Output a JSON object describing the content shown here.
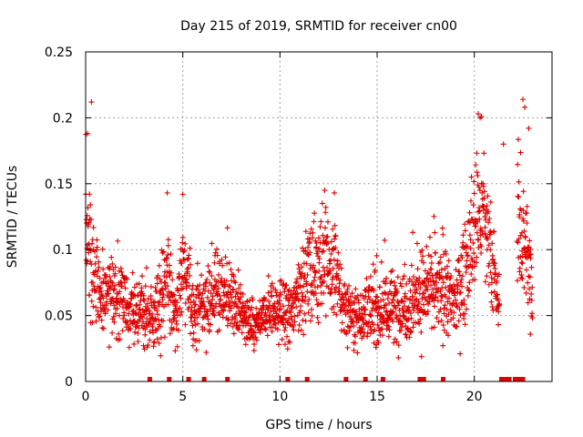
{
  "chart_data": {
    "type": "scatter",
    "title": "Day 215 of 2019, SRMTID for receiver cn00",
    "xlabel": "GPS time / hours",
    "ylabel": "SRMTID / TECUs",
    "xlim": [
      0,
      24
    ],
    "ylim": [
      0,
      0.25
    ],
    "x_ticks": [
      0,
      5,
      10,
      15,
      20
    ],
    "x_tick_labels": [
      "0",
      "5",
      "10",
      "15",
      "20"
    ],
    "y_ticks": [
      0,
      0.05,
      0.1,
      0.15,
      0.2,
      0.25
    ],
    "y_tick_labels": [
      "0",
      "0.05",
      "0.1",
      "0.15",
      "0.2",
      "0.25"
    ],
    "grid": true,
    "marker": "plus",
    "color": "#e00000",
    "trend": [
      {
        "x": 0.0,
        "y": 0.12,
        "spread": 0.05
      },
      {
        "x": 0.3,
        "y": 0.085,
        "spread": 0.04
      },
      {
        "x": 0.8,
        "y": 0.065,
        "spread": 0.025
      },
      {
        "x": 1.5,
        "y": 0.07,
        "spread": 0.03
      },
      {
        "x": 2.5,
        "y": 0.052,
        "spread": 0.02
      },
      {
        "x": 3.5,
        "y": 0.045,
        "spread": 0.02
      },
      {
        "x": 4.2,
        "y": 0.075,
        "spread": 0.04
      },
      {
        "x": 4.7,
        "y": 0.05,
        "spread": 0.02
      },
      {
        "x": 5.0,
        "y": 0.09,
        "spread": 0.04
      },
      {
        "x": 5.6,
        "y": 0.05,
        "spread": 0.02
      },
      {
        "x": 6.5,
        "y": 0.065,
        "spread": 0.025
      },
      {
        "x": 7.2,
        "y": 0.07,
        "spread": 0.025
      },
      {
        "x": 8.0,
        "y": 0.05,
        "spread": 0.02
      },
      {
        "x": 8.7,
        "y": 0.04,
        "spread": 0.015
      },
      {
        "x": 9.5,
        "y": 0.055,
        "spread": 0.02
      },
      {
        "x": 10.5,
        "y": 0.05,
        "spread": 0.02
      },
      {
        "x": 11.2,
        "y": 0.075,
        "spread": 0.03
      },
      {
        "x": 12.0,
        "y": 0.09,
        "spread": 0.035
      },
      {
        "x": 12.8,
        "y": 0.085,
        "spread": 0.035
      },
      {
        "x": 13.3,
        "y": 0.055,
        "spread": 0.02
      },
      {
        "x": 14.0,
        "y": 0.05,
        "spread": 0.02
      },
      {
        "x": 15.0,
        "y": 0.055,
        "spread": 0.025
      },
      {
        "x": 16.0,
        "y": 0.055,
        "spread": 0.025
      },
      {
        "x": 17.0,
        "y": 0.065,
        "spread": 0.03
      },
      {
        "x": 18.0,
        "y": 0.07,
        "spread": 0.03
      },
      {
        "x": 19.0,
        "y": 0.06,
        "spread": 0.025
      },
      {
        "x": 19.8,
        "y": 0.1,
        "spread": 0.04
      },
      {
        "x": 20.3,
        "y": 0.13,
        "spread": 0.05
      },
      {
        "x": 20.8,
        "y": 0.1,
        "spread": 0.035
      },
      {
        "x": 21.2,
        "y": 0.06,
        "spread": 0.02
      },
      {
        "x": 22.4,
        "y": 0.12,
        "spread": 0.06
      },
      {
        "x": 22.9,
        "y": 0.075,
        "spread": 0.035
      }
    ],
    "gaps": [
      [
        21.3,
        22.2
      ]
    ],
    "gap_markers": [
      3.3,
      4.3,
      5.3,
      6.1,
      7.3,
      10.4,
      11.4,
      13.4,
      14.4,
      15.3,
      17.2,
      17.4,
      18.4,
      21.4,
      21.6,
      21.8,
      22.1,
      22.3,
      22.5
    ],
    "outliers": [
      {
        "x": 0.3,
        "y": 0.212
      },
      {
        "x": 0.1,
        "y": 0.188
      },
      {
        "x": 4.2,
        "y": 0.143
      },
      {
        "x": 5.0,
        "y": 0.142
      },
      {
        "x": 12.3,
        "y": 0.145
      },
      {
        "x": 12.8,
        "y": 0.143
      },
      {
        "x": 20.2,
        "y": 0.203
      },
      {
        "x": 20.3,
        "y": 0.2
      },
      {
        "x": 21.5,
        "y": 0.18
      },
      {
        "x": 22.5,
        "y": 0.214
      },
      {
        "x": 22.6,
        "y": 0.208
      },
      {
        "x": 22.8,
        "y": 0.192
      }
    ],
    "points_per_hour": 90
  }
}
